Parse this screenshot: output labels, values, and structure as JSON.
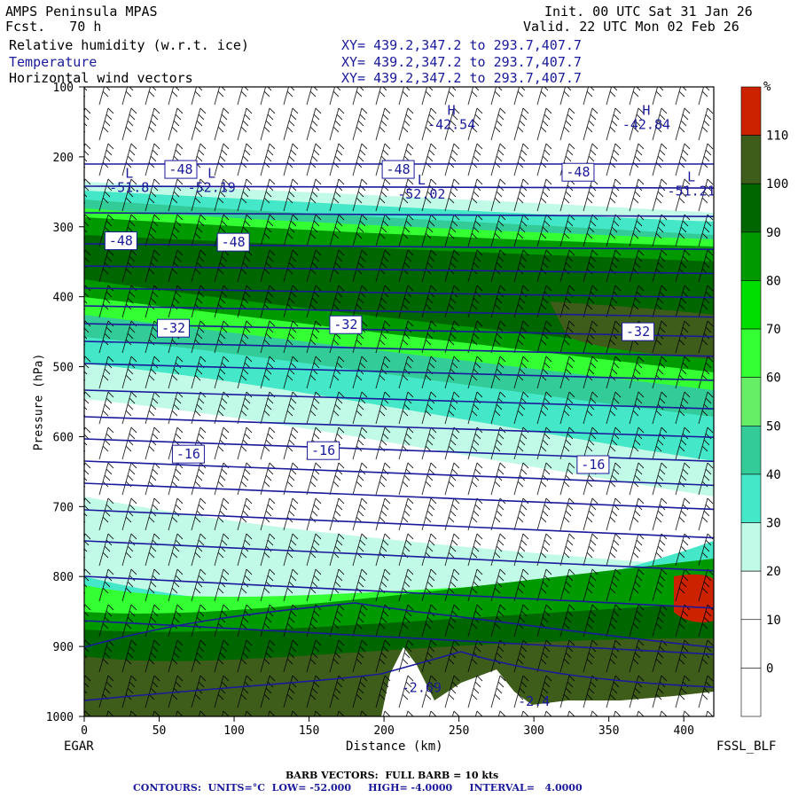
{
  "header": {
    "model": "AMPS Peninsula MPAS",
    "forecast": "Fcst.   70 h",
    "init": "Init. 00 UTC Sat 31 Jan 26",
    "valid": "Valid. 22 UTC Mon 02 Feb 26",
    "field1": "Relative humidity (w.r.t. ice)",
    "field2": "Temperature",
    "field3": "Horizontal wind vectors",
    "xy1": "XY= 439.2,347.2 to 293.7,407.7",
    "xy2": "XY= 439.2,347.2 to 293.7,407.7",
    "xy3": "XY= 439.2,347.2 to 293.7,407.7"
  },
  "axes": {
    "ylabel": "Pressure (hPa)",
    "xlabel": "Distance (km)",
    "left_station": "EGAR",
    "right_station": "FSSL_BLF"
  },
  "colorbar": {
    "unit": "%",
    "levels": [
      "110",
      "100",
      "90",
      "80",
      "70",
      "60",
      "50",
      "40",
      "30",
      "20",
      "10",
      "0"
    ],
    "colors": [
      "#cc2200",
      "#3e5c1a",
      "#006600",
      "#009900",
      "#00dd00",
      "#33ff33",
      "#66ee66",
      "#33cc99",
      "#44e8c8",
      "#c2fae8",
      "#ffffff",
      "#ffffff",
      "#ffffff"
    ]
  },
  "footer": {
    "barb": "BARB VECTORS:  FULL BARB = 10 kts",
    "contours": "CONTOURS:  UNITS=°C  LOW= -52.000     HIGH= -4.0000     INTERVAL=   4.0000"
  },
  "chart_data": {
    "type": "heatmap",
    "x_ticks": [
      0,
      50,
      100,
      150,
      200,
      250,
      300,
      350,
      400
    ],
    "y_ticks": [
      100,
      200,
      300,
      400,
      500,
      600,
      700,
      800,
      900,
      1000
    ],
    "xlim": [
      0,
      420
    ],
    "ylim": [
      1000,
      100
    ],
    "temperature_contour_labels": [
      {
        "text": "-48",
        "x": 55,
        "p": 218
      },
      {
        "text": "-48",
        "x": 200,
        "p": 218
      },
      {
        "text": "-48",
        "x": 320,
        "p": 222
      },
      {
        "text": "-48",
        "x": 15,
        "p": 320
      },
      {
        "text": "-48",
        "x": 90,
        "p": 322
      },
      {
        "text": "-32",
        "x": 50,
        "p": 445
      },
      {
        "text": "-32",
        "x": 165,
        "p": 440
      },
      {
        "text": "-32",
        "x": 360,
        "p": 450
      },
      {
        "text": "-16",
        "x": 60,
        "p": 625
      },
      {
        "text": "-16",
        "x": 150,
        "p": 620
      },
      {
        "text": "-16",
        "x": 330,
        "p": 640
      }
    ],
    "extrema": [
      {
        "label": "L",
        "value": "-51.8",
        "x": 30,
        "p": 250
      },
      {
        "label": "L",
        "value": "-52.19",
        "x": 85,
        "p": 250
      },
      {
        "label": "L",
        "value": "-52.02",
        "x": 225,
        "p": 260
      },
      {
        "label": "L",
        "value": "-51.21",
        "x": 405,
        "p": 255
      },
      {
        "label": "H",
        "value": "-42.54",
        "x": 245,
        "p": 160
      },
      {
        "label": "H",
        "value": "-42.84",
        "x": 375,
        "p": 160
      },
      {
        "label": "",
        "value": "-2.69",
        "x": 225,
        "p": 965
      },
      {
        "label": "",
        "value": "-2.4",
        "x": 300,
        "p": 985
      }
    ],
    "contour_interval": 4,
    "contour_low": -52,
    "contour_high": -4
  }
}
